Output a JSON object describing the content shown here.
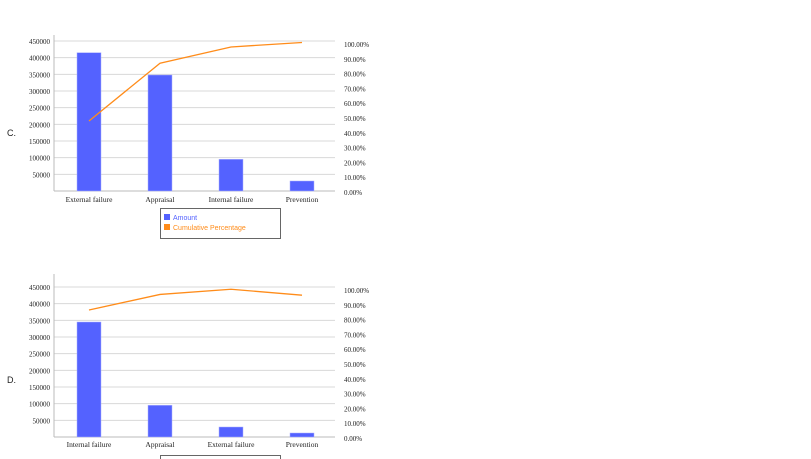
{
  "chart_data": [
    {
      "option_label": "C.",
      "type": "bar+line",
      "categories": [
        "External failure",
        "Appraisal",
        "Internal failure",
        "Prevention"
      ],
      "series": [
        {
          "name": "Amount",
          "type": "bar",
          "axis": "left",
          "color": "#5462ff",
          "values": [
            415000,
            348000,
            95000,
            30000
          ]
        },
        {
          "name": "Cumulative Percentage",
          "type": "line",
          "axis": "right",
          "color": "#ff8c1a",
          "values": [
            48,
            87,
            98,
            101
          ]
        }
      ],
      "left_axis": {
        "ylim": [
          0,
          450000
        ],
        "ticks": [
          "50000",
          "100000",
          "150000",
          "200000",
          "250000",
          "300000",
          "350000",
          "400000",
          "450000"
        ]
      },
      "right_axis": {
        "ylim": [
          0,
          100
        ],
        "ticks": [
          "0.00%",
          "10.00%",
          "20.00%",
          "30.00%",
          "40.00%",
          "50.00%",
          "60.00%",
          "70.00%",
          "80.00%",
          "90.00%",
          "100.00%"
        ]
      },
      "grid": true,
      "legend": {
        "placement": "bottom",
        "entries": [
          "Amount",
          "Cumulative Percentage"
        ]
      }
    },
    {
      "option_label": "D.",
      "type": "bar+line",
      "categories": [
        "Internal failure",
        "Appraisal",
        "External failure",
        "Prevention"
      ],
      "series": [
        {
          "type": "bar",
          "axis": "left",
          "color": "#5462ff",
          "values": [
            345000,
            95000,
            30000,
            12000
          ]
        },
        {
          "type": "line",
          "axis": "right",
          "color": "#ff8c1a",
          "values": [
            86.5,
            97,
            100.5,
            96.5
          ]
        }
      ],
      "left_axis": {
        "ylim": [
          0,
          450000
        ],
        "ticks": [
          "50000",
          "100000",
          "150000",
          "200000",
          "250000",
          "300000",
          "350000",
          "400000",
          "450000"
        ]
      },
      "right_axis": {
        "ylim": [
          0,
          100
        ],
        "ticks": [
          "0.00%",
          "10.00%",
          "20.00%",
          "30.00%",
          "40.00%",
          "50.00%",
          "60.00%",
          "70.00%",
          "80.00%",
          "90.00%",
          "100.00%"
        ]
      },
      "grid": true,
      "legend": {
        "placement": "bottom"
      }
    }
  ]
}
